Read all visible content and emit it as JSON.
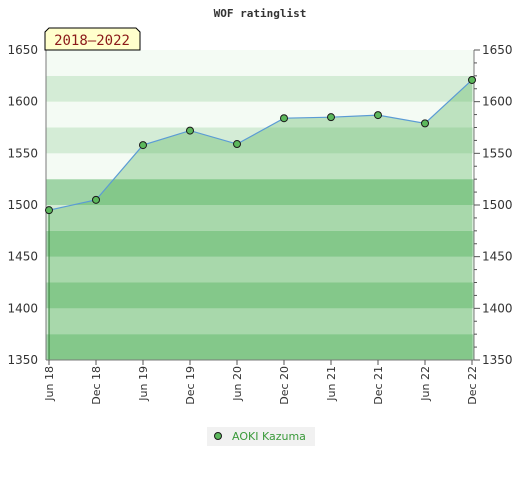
{
  "chart_data": {
    "type": "line",
    "title": "WOF ratinglist",
    "range_label": "2018–2022",
    "categories": [
      "Jun 18",
      "Dec 18",
      "Jun 19",
      "Dec 19",
      "Jun 20",
      "Dec 20",
      "Jun 21",
      "Dec 21",
      "Jun 22",
      "Dec 22"
    ],
    "series": [
      {
        "name": "AOKI Kazuma",
        "values": [
          1495,
          1505,
          1558,
          1572,
          1559,
          1584,
          1585,
          1587,
          1579,
          1621
        ]
      }
    ],
    "ylim": [
      1350,
      1650
    ],
    "yticks": [
      1350,
      1400,
      1450,
      1500,
      1550,
      1600,
      1650
    ],
    "right_axis": true,
    "legend_position": "bottom-center",
    "colors": {
      "line": "#5b9bd5",
      "marker_fill": "#5cb85c",
      "area_fill": "#4caf50",
      "band_light": "#f4fbf4",
      "band_mid": "#d4ecd6",
      "band_dark": "#9fd4a6"
    }
  }
}
